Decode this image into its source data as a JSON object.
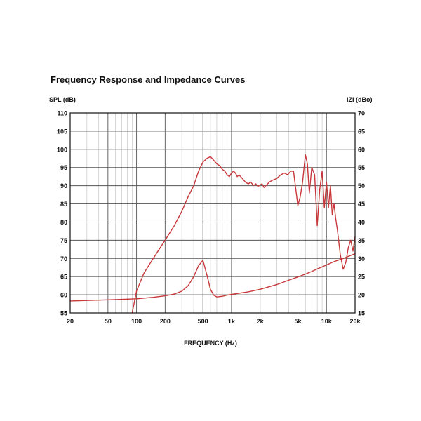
{
  "chart_data": {
    "type": "line",
    "title": "Frequency Response and Impedance Curves",
    "xlabel": "FREQUENCY (Hz)",
    "ylabel_left": "SPL (dB)",
    "ylabel_right": "IZI (dBo)",
    "x_scale": "log",
    "xlim": [
      20,
      20000
    ],
    "ylim_left": [
      55,
      110
    ],
    "ylim_right": [
      15,
      70
    ],
    "x_ticks": [
      {
        "value": 20,
        "label": "20"
      },
      {
        "value": 50,
        "label": "50"
      },
      {
        "value": 100,
        "label": "100"
      },
      {
        "value": 200,
        "label": "200"
      },
      {
        "value": 500,
        "label": "500"
      },
      {
        "value": 1000,
        "label": "1k"
      },
      {
        "value": 2000,
        "label": "2k"
      },
      {
        "value": 5000,
        "label": "5k"
      },
      {
        "value": 10000,
        "label": "10k"
      },
      {
        "value": 20000,
        "label": "20k"
      }
    ],
    "y_ticks_left": [
      {
        "value": 110,
        "label": "110"
      },
      {
        "value": 105,
        "label": "105"
      },
      {
        "value": 100,
        "label": "100"
      },
      {
        "value": 95,
        "label": "95"
      },
      {
        "value": 90,
        "label": "90"
      },
      {
        "value": 85,
        "label": "85"
      },
      {
        "value": 80,
        "label": "80"
      },
      {
        "value": 75,
        "label": "75"
      },
      {
        "value": 70,
        "label": "70"
      },
      {
        "value": 65,
        "label": "65"
      },
      {
        "value": 60,
        "label": "60"
      },
      {
        "value": 55,
        "label": "55"
      }
    ],
    "y_ticks_right": [
      {
        "value": 70,
        "label": "70"
      },
      {
        "value": 65,
        "label": "65"
      },
      {
        "value": 60,
        "label": "60"
      },
      {
        "value": 55,
        "label": "55"
      },
      {
        "value": 50,
        "label": "50"
      },
      {
        "value": 45,
        "label": "45"
      },
      {
        "value": 40,
        "label": "40"
      },
      {
        "value": 35,
        "label": "35"
      },
      {
        "value": 30,
        "label": "30"
      },
      {
        "value": 25,
        "label": "25"
      },
      {
        "value": 20,
        "label": "20"
      },
      {
        "value": 15,
        "label": "15"
      }
    ],
    "grid": true,
    "line_color": "#c8373a",
    "series": [
      {
        "axis": "left",
        "x": [
          90,
          100,
          120,
          150,
          200,
          250,
          300,
          350,
          400,
          450,
          500,
          550,
          600,
          650,
          700,
          750,
          800,
          850,
          900,
          950,
          1000,
          1050,
          1100,
          1150,
          1200,
          1300,
          1400,
          1500,
          1600,
          1700,
          1800,
          1900,
          2000,
          2100,
          2200,
          2300,
          2400,
          2500,
          2700,
          3000,
          3300,
          3600,
          3900,
          4200,
          4500,
          4700,
          5000,
          5300,
          5600,
          6000,
          6300,
          6600,
          7000,
          7500,
          8000,
          8500,
          9000,
          9500,
          10000,
          10500,
          11000,
          11500,
          12000,
          12500,
          13000,
          14000,
          15000,
          16000,
          17000,
          18000,
          19000,
          20000
        ],
        "y": [
          55,
          61,
          66,
          70,
          75,
          79,
          83,
          87,
          90,
          94,
          96.5,
          97.5,
          98,
          97,
          96,
          95.5,
          94.5,
          94,
          93,
          92.5,
          93.5,
          94,
          93.5,
          92.5,
          93,
          92,
          91,
          90.5,
          91,
          90,
          90.5,
          89.8,
          90.2,
          90.5,
          89.5,
          90,
          90.5,
          91,
          91.5,
          92,
          93,
          93.5,
          93,
          94,
          94,
          90,
          84.5,
          87,
          91,
          98.5,
          96,
          88,
          95,
          93,
          79,
          89,
          94,
          84,
          91,
          84,
          90,
          82,
          85,
          81,
          78,
          71,
          67,
          69,
          73,
          75,
          72,
          76
        ]
      },
      {
        "axis": "right",
        "x": [
          20,
          50,
          100,
          150,
          200,
          250,
          300,
          350,
          400,
          450,
          500,
          550,
          600,
          650,
          700,
          800,
          900,
          1000,
          1500,
          2000,
          3000,
          4000,
          5000,
          6000,
          7000,
          8000,
          10000,
          12000,
          15000,
          20000
        ],
        "y": [
          18.3,
          18.6,
          18.9,
          19.3,
          19.7,
          20.2,
          21,
          22.5,
          25,
          28,
          29.5,
          25.5,
          21.5,
          19.9,
          19.4,
          19.6,
          19.9,
          20.1,
          20.8,
          21.5,
          22.8,
          24,
          24.9,
          25.7,
          26.4,
          27.1,
          28.2,
          29.1,
          30,
          31.3
        ]
      }
    ]
  }
}
